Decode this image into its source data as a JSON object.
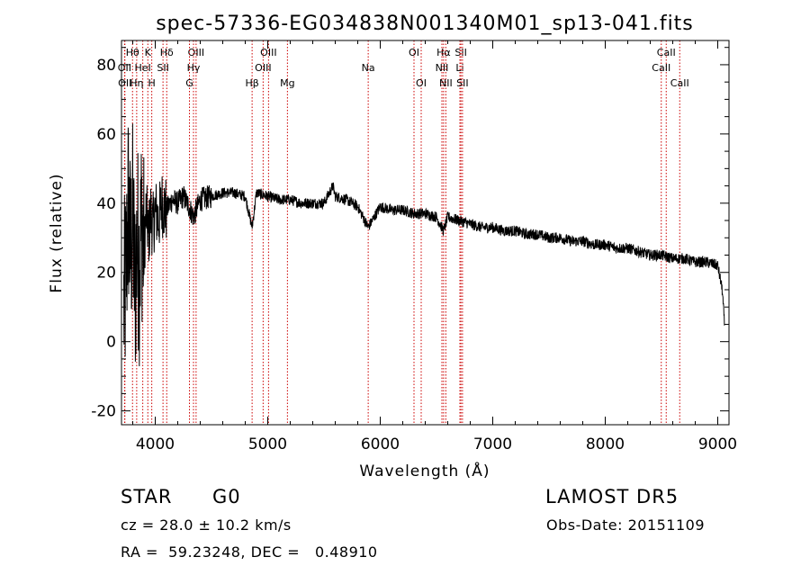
{
  "chart_data": {
    "type": "line",
    "title": "spec-57336-EG034838N001340M01_sp13-041.fits",
    "xlabel": "Wavelength (Å)",
    "ylabel": "Flux (relative)",
    "xlim": [
      3700,
      9100
    ],
    "ylim": [
      -24,
      87
    ],
    "xticks": [
      4000,
      5000,
      6000,
      7000,
      8000,
      9000
    ],
    "yticks": [
      -20,
      0,
      20,
      40,
      60,
      80
    ],
    "line_color": "#000000",
    "marker_color": "#cc0000",
    "series": [
      {
        "x": [
          3720,
          3740,
          3760,
          3780,
          3800,
          3820,
          3840,
          3860,
          3880,
          3900,
          3920,
          3940,
          3960,
          3980,
          4000,
          4030,
          4060,
          4100,
          4150,
          4200,
          4250,
          4300,
          4340,
          4400,
          4500,
          4600,
          4700,
          4800,
          4861,
          4900,
          5000,
          5100,
          5200,
          5300,
          5400,
          5500,
          5580,
          5600,
          5700,
          5800,
          5893,
          6000,
          6100,
          6200,
          6300,
          6400,
          6500,
          6563,
          6600,
          6700,
          6800,
          6900,
          7000,
          7100,
          7200,
          7300,
          7400,
          7500,
          7600,
          7700,
          7800,
          7900,
          8000,
          8100,
          8200,
          8300,
          8400,
          8500,
          8600,
          8700,
          8800,
          8900,
          9000,
          9040,
          9060
        ],
        "y": [
          10,
          18,
          40,
          25,
          35,
          15,
          30,
          22,
          36,
          25,
          38,
          30,
          37,
          33,
          38,
          35,
          40,
          38,
          41,
          40,
          42,
          39,
          36,
          41,
          42,
          43,
          43,
          42,
          33,
          43,
          42,
          41,
          41,
          40,
          40,
          40,
          45,
          42,
          41,
          39,
          33,
          39,
          38,
          38,
          37,
          37,
          36,
          32,
          36,
          35,
          34,
          33,
          33,
          32,
          32,
          31,
          31,
          30,
          30,
          29,
          29,
          28,
          28,
          27,
          27,
          26,
          25,
          25,
          24,
          24,
          23,
          23,
          22,
          15,
          5
        ]
      }
    ],
    "line_markers": [
      {
        "label": "Hθ",
        "x": 3798,
        "row": 1
      },
      {
        "label": "OII",
        "x": 3727,
        "row": 2
      },
      {
        "label": "OII",
        "x": 3730,
        "row": 3
      },
      {
        "label": "K",
        "x": 3934,
        "row": 1
      },
      {
        "label": "HeI",
        "x": 3889,
        "row": 2
      },
      {
        "label": "Hη",
        "x": 3835,
        "row": 3
      },
      {
        "label": "Hδ",
        "x": 4102,
        "row": 1
      },
      {
        "label": "SII",
        "x": 4069,
        "row": 2
      },
      {
        "label": "H",
        "x": 3969,
        "row": 3
      },
      {
        "label": "OIII",
        "x": 4363,
        "row": 1
      },
      {
        "label": "Hγ",
        "x": 4340,
        "row": 2
      },
      {
        "label": "G",
        "x": 4304,
        "row": 3
      },
      {
        "label": "OIII",
        "x": 5007,
        "row": 1
      },
      {
        "label": "OIII",
        "x": 4959,
        "row": 2
      },
      {
        "label": "Hβ",
        "x": 4861,
        "row": 3
      },
      {
        "label": "Mg",
        "x": 5175,
        "row": 3
      },
      {
        "label": "Na",
        "x": 5893,
        "row": 2
      },
      {
        "label": "OI",
        "x": 6300,
        "row": 1
      },
      {
        "label": "OI",
        "x": 6364,
        "row": 3
      },
      {
        "label": "Hα",
        "x": 6563,
        "row": 1
      },
      {
        "label": "NII",
        "x": 6548,
        "row": 2
      },
      {
        "label": "NII",
        "x": 6583,
        "row": 3
      },
      {
        "label": "SII",
        "x": 6717,
        "row": 1
      },
      {
        "label": "Li",
        "x": 6708,
        "row": 2
      },
      {
        "label": "SII",
        "x": 6731,
        "row": 3
      },
      {
        "label": "CaII",
        "x": 8542,
        "row": 1
      },
      {
        "label": "CaII",
        "x": 8498,
        "row": 2
      },
      {
        "label": "CaII",
        "x": 8662,
        "row": 3
      }
    ]
  },
  "info": {
    "object_class": "STAR",
    "subclass": "G0",
    "survey": "LAMOST DR5",
    "cz": "cz = 28.0 ± 10.2 km/s",
    "obs_date": "Obs-Date: 20151109",
    "coords": "RA =  59.23248, DEC =   0.48910"
  }
}
